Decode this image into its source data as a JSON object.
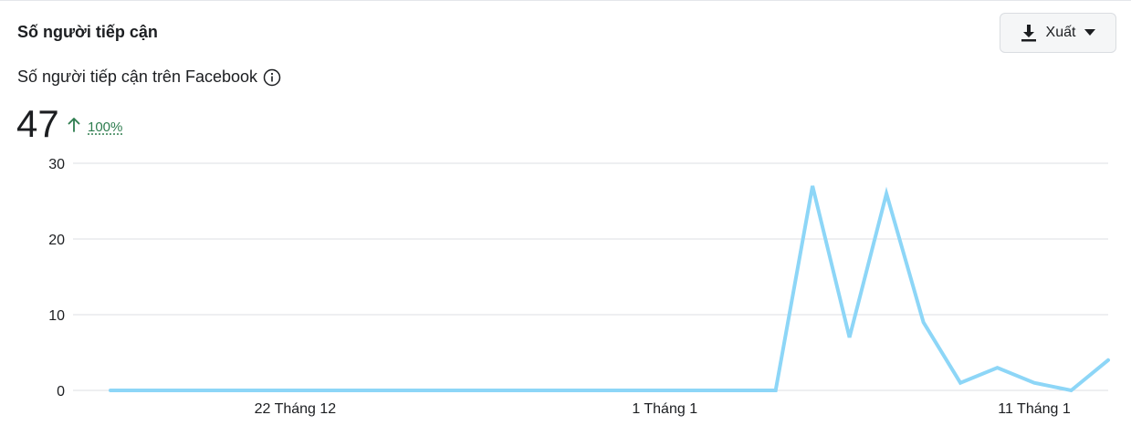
{
  "header": {
    "title": "Số người tiếp cận",
    "export_label": "Xuất"
  },
  "metric": {
    "subtitle": "Số người tiếp cận trên Facebook",
    "value": "47",
    "change": "100%",
    "trend_direction": "up"
  },
  "colors": {
    "line": "#8dd6f7",
    "grid": "#dcdfe3",
    "positive": "#2e7d4f"
  },
  "icons": {
    "export": "download-icon",
    "dropdown": "caret-down-icon",
    "info": "info-icon",
    "trend": "arrow-up-icon"
  },
  "chart_data": {
    "type": "line",
    "title": "",
    "xlabel": "",
    "ylabel": "",
    "ylim": [
      0,
      30
    ],
    "yticks": [
      0,
      10,
      20,
      30
    ],
    "grid": true,
    "x_tick_labels": [
      {
        "index": 5,
        "label": "22 Tháng 12"
      },
      {
        "index": 15,
        "label": "1 Tháng 1"
      },
      {
        "index": 25,
        "label": "11 Tháng 1"
      }
    ],
    "series": [
      {
        "values": [
          0,
          0,
          0,
          0,
          0,
          0,
          0,
          0,
          0,
          0,
          0,
          0,
          0,
          0,
          0,
          0,
          0,
          0,
          0,
          27,
          7,
          26,
          9,
          1,
          3,
          1,
          0,
          4
        ]
      }
    ]
  }
}
